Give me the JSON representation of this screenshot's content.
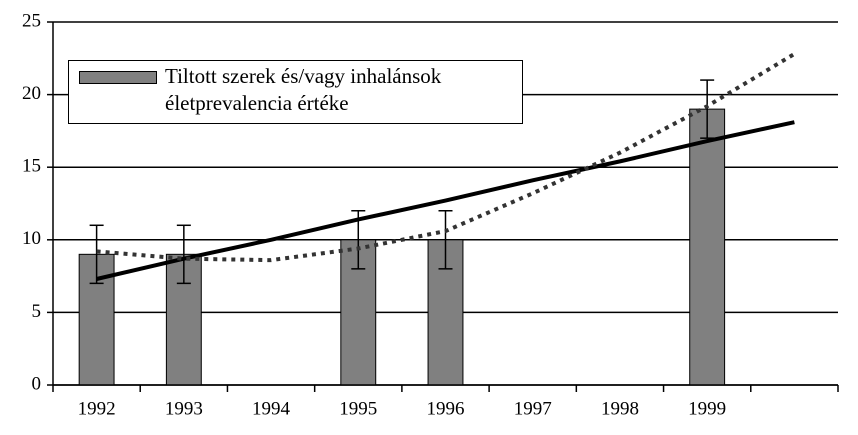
{
  "chart_data": {
    "type": "bar",
    "categories": [
      "1992",
      "1993",
      "1994",
      "1995",
      "1996",
      "1997",
      "1998",
      "1999",
      null
    ],
    "series": [
      {
        "name": "Tiltott szerek és/vagy inhalánsok életprevalencia értéke",
        "color": "#808080",
        "values": [
          9,
          9,
          null,
          10,
          10,
          null,
          null,
          19,
          null
        ],
        "errors": [
          2,
          2,
          null,
          2,
          2,
          null,
          null,
          2,
          null
        ]
      }
    ],
    "trendlines": [
      {
        "kind": "linear",
        "color": "#000000",
        "values": [
          7.3,
          8.7,
          10.0,
          11.4,
          12.7,
          14.1,
          15.4,
          16.8,
          18.1
        ]
      },
      {
        "kind": "polynomial",
        "color": "#333333",
        "values": [
          9.2,
          8.7,
          8.6,
          9.4,
          10.6,
          13.2,
          16.0,
          19.2,
          22.8
        ]
      }
    ],
    "ylim": [
      0,
      25
    ],
    "yticks": [
      0,
      5,
      10,
      15,
      20,
      25
    ],
    "grid": true
  }
}
